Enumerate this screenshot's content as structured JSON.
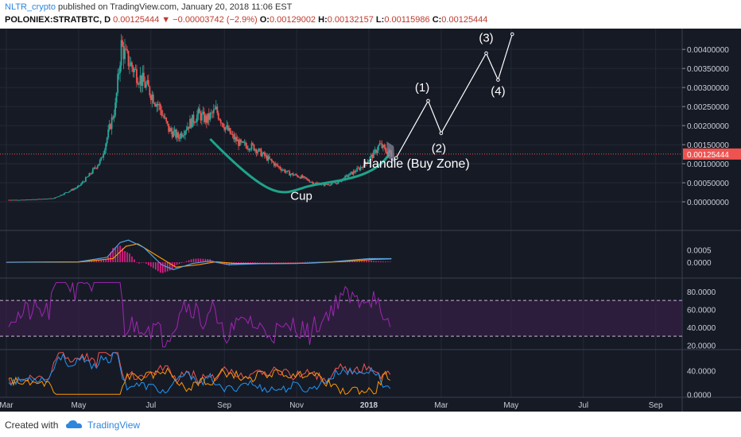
{
  "header": {
    "user": "NLTR_crypto",
    "published": "published on TradingView.com, January 20, 2018 11:06 EST",
    "symbol": "POLONIEX:STRATBTC, D",
    "last": "0.00125444",
    "change_arrow": "▼",
    "change": "−0.00003742 (−2.9%)",
    "o_label": "O:",
    "o_value": "0.00129002",
    "h_label": "H:",
    "h_value": "0.00132157",
    "l_label": "L:",
    "l_value": "0.00115986",
    "c_label": "C:",
    "c_value": "0.00125444"
  },
  "footer": {
    "created_with": "Created with",
    "brand": "TradingView",
    "logo_icon": "tradingview-cloud-icon"
  },
  "colors": {
    "background": "#161a25",
    "up": "#26a69a",
    "down": "#ef5350",
    "cup": "#1fa38a",
    "macd": "#4fa3e0",
    "signal": "#ff9800",
    "rsi": "#9c27b0"
  },
  "chart_data": [
    {
      "type": "candlestick",
      "panel": "price",
      "x_ticks": [
        "Mar",
        "May",
        "Jul",
        "Sep",
        "Nov",
        "2018",
        "Mar",
        "May",
        "Jul",
        "Sep"
      ],
      "y_ticks": [
        "0.00400000",
        "0.00350000",
        "0.00300000",
        "0.00250000",
        "0.00200000",
        "0.00150000",
        "0.00100000",
        "0.00050000",
        "0.00000000"
      ],
      "ylim": [
        0,
        0.0044
      ],
      "last_price": 0.00125444,
      "last_label": "0.00125444",
      "close_path": [
        [
          "2017-03-15",
          5e-05
        ],
        [
          "2017-04-10",
          9e-05
        ],
        [
          "2017-05-01",
          0.0004
        ],
        [
          "2017-05-10",
          0.0007
        ],
        [
          "2017-05-20",
          0.0011
        ],
        [
          "2017-06-01",
          0.0025
        ],
        [
          "2017-06-06",
          0.0041
        ],
        [
          "2017-06-10",
          0.0038
        ],
        [
          "2017-06-18",
          0.0034
        ],
        [
          "2017-06-28",
          0.003
        ],
        [
          "2017-07-08",
          0.0025
        ],
        [
          "2017-07-16",
          0.0019
        ],
        [
          "2017-07-24",
          0.0017
        ],
        [
          "2017-08-01",
          0.002
        ],
        [
          "2017-08-10",
          0.0023
        ],
        [
          "2017-08-17",
          0.00215
        ],
        [
          "2017-08-25",
          0.0024
        ],
        [
          "2017-09-01",
          0.002
        ],
        [
          "2017-09-08",
          0.0017
        ],
        [
          "2017-09-15",
          0.0015
        ],
        [
          "2017-09-25",
          0.00145
        ],
        [
          "2017-10-05",
          0.0012
        ],
        [
          "2017-10-15",
          0.00095
        ],
        [
          "2017-10-25",
          0.00075
        ],
        [
          "2017-11-05",
          0.00065
        ],
        [
          "2017-11-15",
          0.0005
        ],
        [
          "2017-11-25",
          0.00045
        ],
        [
          "2017-12-05",
          0.0005
        ],
        [
          "2017-12-15",
          0.0007
        ],
        [
          "2017-12-25",
          0.0009
        ],
        [
          "2018-01-05",
          0.00125
        ],
        [
          "2018-01-10",
          0.0015
        ],
        [
          "2018-01-15",
          0.00135
        ],
        [
          "2018-01-20",
          0.00125
        ]
      ],
      "annotations": [
        {
          "text": "Cup",
          "x": "2017-11-05",
          "y": 5e-05
        },
        {
          "text": "Handle (Buy Zone)",
          "x": "2018-02-10",
          "y": 0.0009
        },
        {
          "text": "(1)",
          "x": "2018-02-15",
          "y": 0.0029
        },
        {
          "text": "(2)",
          "x": "2018-03-01",
          "y": 0.0013
        },
        {
          "text": "(3)",
          "x": "2018-04-10",
          "y": 0.0042
        },
        {
          "text": "(4)",
          "x": "2018-04-20",
          "y": 0.0028
        }
      ],
      "cup_curve": [
        [
          "2017-08-20",
          0.00165
        ],
        [
          "2017-10-15",
          0.0007
        ],
        [
          "2017-11-10",
          0.0004
        ],
        [
          "2017-12-15",
          0.00055
        ],
        [
          "2018-01-18",
          0.00125
        ]
      ],
      "projection": [
        [
          "2018-01-24",
          0.00115
        ],
        [
          "2018-02-20",
          0.00265
        ],
        [
          "2018-03-03",
          0.0018
        ],
        [
          "2018-04-10",
          0.0039
        ],
        [
          "2018-04-20",
          0.0032
        ],
        [
          "2018-05-02",
          0.0044
        ]
      ]
    },
    {
      "type": "line",
      "panel": "macd",
      "y_ticks": [
        "0.0005",
        "0.0000"
      ],
      "ylim": [
        -0.00045,
        0.0011
      ],
      "series": [
        {
          "values": [
            [
              "2017-03-01",
              0
            ],
            [
              "2017-05-01",
              2e-05
            ],
            [
              "2017-05-25",
              0.0002
            ],
            [
              "2017-06-05",
              0.0008
            ],
            [
              "2017-06-12",
              0.0009
            ],
            [
              "2017-06-25",
              0.0006
            ],
            [
              "2017-07-10",
              -0.0001
            ],
            [
              "2017-07-20",
              -0.0003
            ],
            [
              "2017-08-05",
              -5e-05
            ],
            [
              "2017-08-20",
              5e-05
            ],
            [
              "2017-09-05",
              -0.0001
            ],
            [
              "2017-10-01",
              -6e-05
            ],
            [
              "2017-11-01",
              -5e-05
            ],
            [
              "2017-12-01",
              2e-05
            ],
            [
              "2018-01-01",
              0.00015
            ],
            [
              "2018-01-20",
              0.00015
            ]
          ]
        },
        {
          "values": [
            [
              "2017-03-01",
              0
            ],
            [
              "2017-05-01",
              1e-05
            ],
            [
              "2017-05-30",
              0.00015
            ],
            [
              "2017-06-10",
              0.00065
            ],
            [
              "2017-06-20",
              0.00075
            ],
            [
              "2017-07-05",
              0.0003
            ],
            [
              "2017-07-22",
              -0.0002
            ],
            [
              "2017-08-10",
              -0.0001
            ],
            [
              "2017-08-25",
              2e-05
            ],
            [
              "2017-09-10",
              -5e-05
            ],
            [
              "2017-10-10",
              -5e-05
            ],
            [
              "2017-11-10",
              -4e-05
            ],
            [
              "2017-12-10",
              3e-05
            ],
            [
              "2018-01-05",
              0.00012
            ],
            [
              "2018-01-20",
              0.00014
            ]
          ]
        }
      ]
    },
    {
      "type": "line",
      "panel": "rsi",
      "y_ticks": [
        "80.0000",
        "60.0000",
        "40.0000",
        "20.0000"
      ],
      "ylim": [
        15,
        95
      ],
      "bands": [
        30,
        70
      ]
    },
    {
      "type": "line",
      "panel": "dmi",
      "y_ticks": [
        "40.0000",
        "0.0000"
      ],
      "ylim": [
        -5,
        75
      ]
    }
  ]
}
